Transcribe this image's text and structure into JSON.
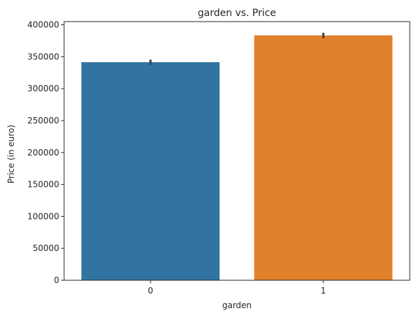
{
  "chart_data": {
    "type": "bar",
    "title": "garden vs. Price",
    "xlabel": "garden",
    "ylabel": "Price (in euro)",
    "categories": [
      "0",
      "1"
    ],
    "values": [
      341500,
      383500
    ],
    "error_low": [
      337500,
      379000
    ],
    "error_high": [
      345500,
      387500
    ],
    "ylim": [
      0,
      405000
    ],
    "yticks": [
      0,
      50000,
      100000,
      150000,
      200000,
      250000,
      300000,
      350000,
      400000
    ],
    "colors": [
      "#3274a1",
      "#e1812c"
    ],
    "errorbar_color": "#3f3f3f",
    "grid": false,
    "legend": "none"
  }
}
